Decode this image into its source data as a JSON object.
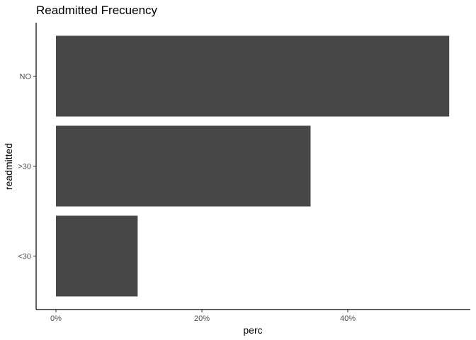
{
  "chart_data": {
    "type": "bar",
    "orientation": "horizontal",
    "title": "Readmitted Frecuency",
    "xlabel": "perc",
    "ylabel": "readmitted",
    "categories": [
      "NO",
      ">30",
      "<30"
    ],
    "values": [
      0.539,
      0.349,
      0.112
    ],
    "xlim": [
      0,
      0.57
    ],
    "xticks": [
      0,
      0.2,
      0.4
    ],
    "xtick_labels": [
      "0%",
      "20%",
      "40%"
    ],
    "bar_color": "#474747",
    "axis_color": "#000000",
    "grid": false,
    "legend": "none"
  }
}
